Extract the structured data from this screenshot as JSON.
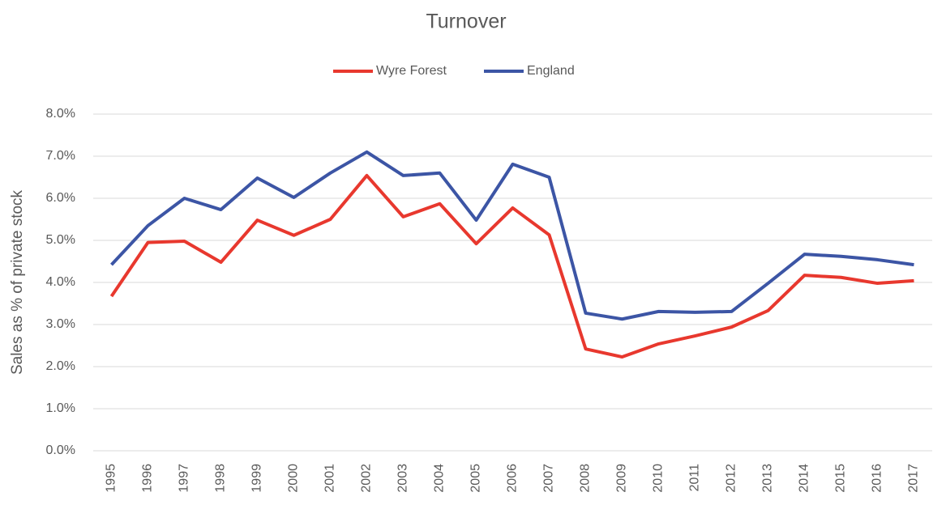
{
  "chart_data": {
    "type": "line",
    "title": "Turnover",
    "y_label": "Sales as % of private stock",
    "categories": [
      "1995",
      "1996",
      "1997",
      "1998",
      "1999",
      "2000",
      "2001",
      "2002",
      "2003",
      "2004",
      "2005",
      "2006",
      "2007",
      "2008",
      "2009",
      "2010",
      "2011",
      "2012",
      "2013",
      "2014",
      "2015",
      "2016",
      "2017"
    ],
    "series": [
      {
        "name": "Wyre Forest",
        "color": "#e8382e",
        "values": [
          3.67,
          4.95,
          4.98,
          4.48,
          5.48,
          5.12,
          5.5,
          6.54,
          5.56,
          5.87,
          4.92,
          5.77,
          5.13,
          2.42,
          2.23,
          2.54,
          2.73,
          2.94,
          3.33,
          4.17,
          4.12,
          3.98,
          4.04
        ]
      },
      {
        "name": "England",
        "color": "#3c55a5",
        "values": [
          4.42,
          5.35,
          6.0,
          5.73,
          6.48,
          6.02,
          6.6,
          7.1,
          6.54,
          6.6,
          5.48,
          6.81,
          6.5,
          3.27,
          3.13,
          3.31,
          3.29,
          3.31,
          3.98,
          4.67,
          4.62,
          4.54,
          4.42
        ]
      }
    ],
    "ylim": [
      0,
      8
    ],
    "yticks": [
      {
        "value": 0,
        "label": "0.0%"
      },
      {
        "value": 1,
        "label": "1.0%"
      },
      {
        "value": 2,
        "label": "2.0%"
      },
      {
        "value": 3,
        "label": "3.0%"
      },
      {
        "value": 4,
        "label": "4.0%"
      },
      {
        "value": 5,
        "label": "5.0%"
      },
      {
        "value": 6,
        "label": "6.0%"
      },
      {
        "value": 7,
        "label": "7.0%"
      },
      {
        "value": 8,
        "label": "8.0%"
      }
    ],
    "grid": true,
    "legend": "top"
  }
}
